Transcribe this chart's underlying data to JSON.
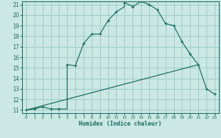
{
  "xlabel": "Humidex (Indice chaleur)",
  "bg_color": "#cce8e4",
  "grid_color": "#99ccc8",
  "line_color": "#1a6b60",
  "xlim": [
    -0.5,
    23.5
  ],
  "ylim": [
    10.7,
    21.3
  ],
  "xticks": [
    0,
    1,
    2,
    3,
    4,
    5,
    6,
    7,
    8,
    9,
    10,
    11,
    12,
    13,
    14,
    15,
    16,
    17,
    18,
    19,
    20,
    21,
    22,
    23
  ],
  "yticks": [
    11,
    12,
    13,
    14,
    15,
    16,
    17,
    18,
    19,
    20,
    21
  ],
  "curve_x": [
    0,
    1,
    2,
    3,
    4,
    5,
    5,
    6,
    7,
    8,
    9,
    10,
    11,
    12,
    12,
    13,
    14,
    15,
    16,
    17,
    18,
    19,
    20,
    21,
    22,
    23
  ],
  "curve_y": [
    11,
    11.1,
    11.3,
    11.1,
    11.1,
    11.1,
    15.3,
    15.2,
    17.3,
    18.2,
    18.2,
    19.5,
    20.3,
    20.8,
    21.2,
    20.8,
    21.3,
    21.0,
    20.5,
    19.2,
    19.0,
    17.5,
    16.3,
    15.3,
    13.0,
    12.5
  ],
  "line_x": [
    0,
    21
  ],
  "line_y": [
    11,
    15.3
  ],
  "marker_x": [
    0,
    1,
    2,
    3,
    4,
    5,
    6,
    7,
    8,
    9,
    10,
    11,
    12,
    13,
    14,
    15,
    16,
    17,
    18,
    19,
    20,
    21,
    22,
    23
  ],
  "marker_y": [
    11,
    11.1,
    11.3,
    11.1,
    11.1,
    15.3,
    15.2,
    17.3,
    18.2,
    18.2,
    19.5,
    20.3,
    21.2,
    20.8,
    21.3,
    21.0,
    20.5,
    19.2,
    19.0,
    17.5,
    16.3,
    15.3,
    13.0,
    12.5
  ]
}
